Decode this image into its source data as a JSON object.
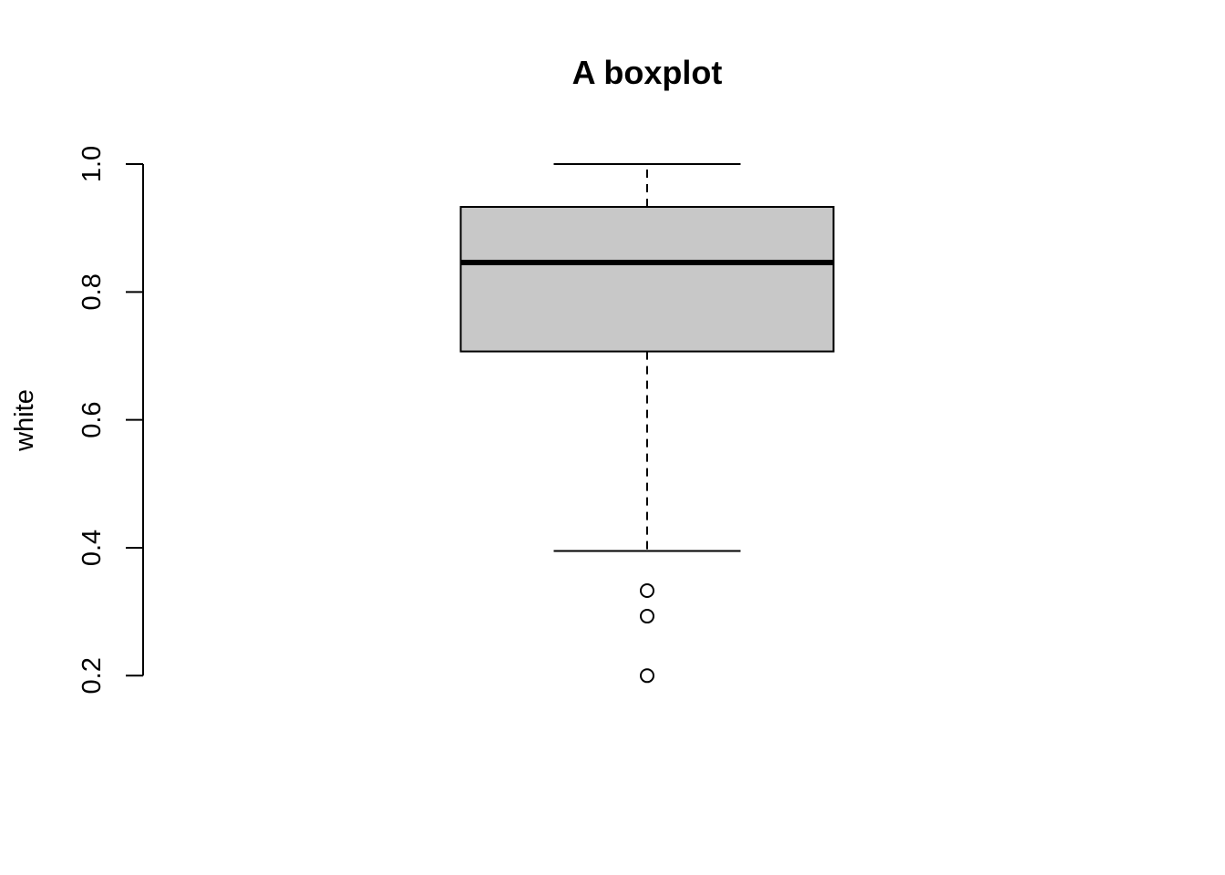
{
  "chart_data": {
    "type": "boxplot",
    "title": "A boxplot",
    "xlabel": "",
    "ylabel": "white",
    "ylim": [
      0.2,
      1.0
    ],
    "y_ticks": [
      0.2,
      0.4,
      0.6,
      0.8,
      1.0
    ],
    "y_tick_labels": [
      "0.2",
      "0.4",
      "0.6",
      "0.8",
      "1.0"
    ],
    "grid": false,
    "box": {
      "whisker_low": 0.395,
      "q1": 0.707,
      "median": 0.846,
      "q3": 0.933,
      "whisker_high": 1.0,
      "outliers": [
        0.333,
        0.293,
        0.2
      ]
    },
    "colors": {
      "box_fill": "#c8c8c8",
      "stroke": "#000000"
    }
  }
}
